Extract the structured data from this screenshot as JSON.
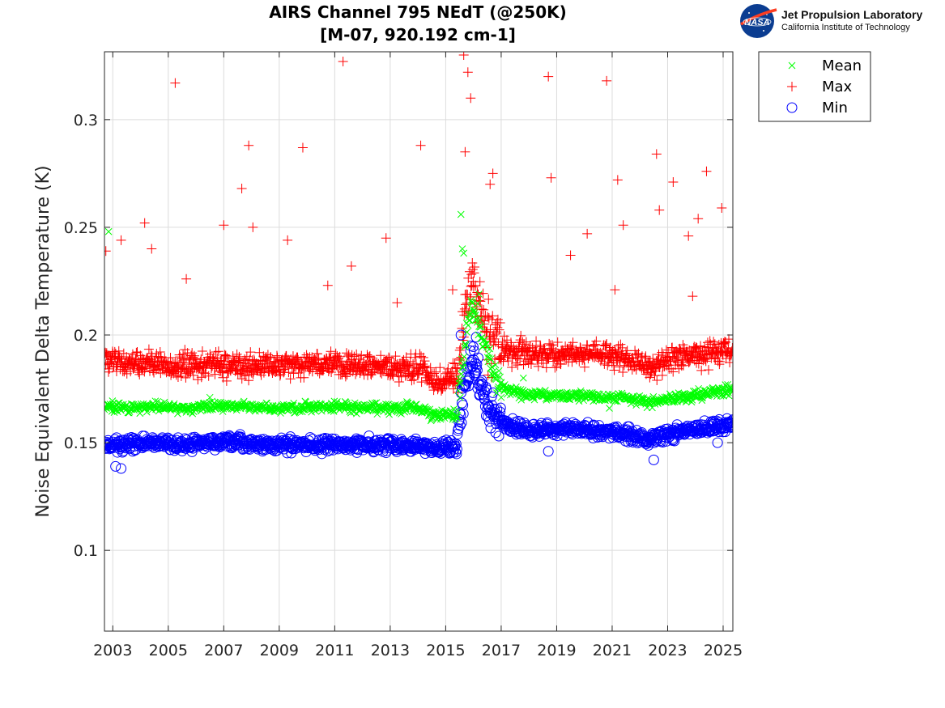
{
  "chart_data": {
    "type": "scatter",
    "title": [
      "AIRS Channel 795 NEdT (@250K)",
      "[M-07, 920.192 cm-1]"
    ],
    "xlabel": "",
    "ylabel": "Noise Equivalent Delta Temperature (K)",
    "xlim": [
      2002.7,
      2025.35
    ],
    "ylim": [
      0.0625,
      0.3315
    ],
    "xticks": [
      2003,
      2005,
      2007,
      2009,
      2011,
      2013,
      2015,
      2017,
      2019,
      2021,
      2023,
      2025
    ],
    "yticks": [
      0.1,
      0.15,
      0.2,
      0.25,
      0.3
    ],
    "ytick_labels": [
      "0.1",
      "0.15",
      "0.2",
      "0.25",
      "0.3"
    ],
    "grid": true,
    "legend_position": "outside-top-right",
    "series": [
      {
        "name": "Mean",
        "marker": "x",
        "color": "#00ff00",
        "x": [
          2002.7,
          2003.5,
          2004.5,
          2005.5,
          2006.5,
          2007.5,
          2008.5,
          2009.5,
          2010.5,
          2011.5,
          2012.5,
          2013.5,
          2014.2,
          2014.5,
          2015.0,
          2015.4,
          2015.6,
          2015.8,
          2016.0,
          2016.2,
          2016.4,
          2016.6,
          2016.8,
          2017.0,
          2017.5,
          2018.0,
          2018.5,
          2019.0,
          2019.5,
          2020.0,
          2020.5,
          2021.0,
          2021.5,
          2022.0,
          2022.3,
          2022.6,
          2023.0,
          2023.5,
          2024.0,
          2024.5,
          2025.0,
          2025.35
        ],
        "y": [
          0.167,
          0.166,
          0.167,
          0.166,
          0.167,
          0.167,
          0.166,
          0.166,
          0.167,
          0.166,
          0.166,
          0.166,
          0.166,
          0.162,
          0.163,
          0.163,
          0.185,
          0.205,
          0.215,
          0.205,
          0.195,
          0.188,
          0.18,
          0.176,
          0.174,
          0.172,
          0.172,
          0.172,
          0.172,
          0.172,
          0.171,
          0.171,
          0.171,
          0.17,
          0.168,
          0.169,
          0.17,
          0.171,
          0.172,
          0.173,
          0.174,
          0.175
        ],
        "outliers": [
          [
            2002.85,
            0.248
          ],
          [
            2006.5,
            0.171
          ],
          [
            2013.6,
            0.169
          ],
          [
            2015.55,
            0.256
          ],
          [
            2015.6,
            0.24
          ],
          [
            2015.65,
            0.238
          ],
          [
            2016.2,
            0.219
          ],
          [
            2017.0,
            0.171
          ],
          [
            2020.9,
            0.166
          ],
          [
            2017.8,
            0.18
          ]
        ]
      },
      {
        "name": "Max",
        "marker": "+",
        "color": "#ff0000",
        "x": [
          2002.7,
          2003.5,
          2004.5,
          2005.5,
          2006.5,
          2007.5,
          2008.5,
          2009.5,
          2010.5,
          2011.5,
          2012.5,
          2013.5,
          2014.2,
          2014.5,
          2015.0,
          2015.4,
          2015.6,
          2015.8,
          2016.0,
          2016.2,
          2016.4,
          2016.6,
          2016.8,
          2017.0,
          2017.5,
          2018.0,
          2018.5,
          2019.0,
          2019.5,
          2020.0,
          2020.5,
          2021.0,
          2021.5,
          2022.0,
          2022.3,
          2022.6,
          2023.0,
          2023.5,
          2024.0,
          2024.5,
          2025.0,
          2025.35
        ],
        "y": [
          0.187,
          0.186,
          0.186,
          0.185,
          0.185,
          0.185,
          0.185,
          0.185,
          0.185,
          0.185,
          0.184,
          0.184,
          0.184,
          0.178,
          0.178,
          0.18,
          0.2,
          0.215,
          0.225,
          0.212,
          0.205,
          0.2,
          0.196,
          0.193,
          0.191,
          0.19,
          0.19,
          0.19,
          0.191,
          0.191,
          0.19,
          0.19,
          0.188,
          0.186,
          0.184,
          0.185,
          0.187,
          0.189,
          0.19,
          0.191,
          0.192,
          0.193
        ],
        "outliers": [
          [
            2002.75,
            0.239
          ],
          [
            2005.25,
            0.317
          ],
          [
            2007.65,
            0.268
          ],
          [
            2007.9,
            0.288
          ],
          [
            2009.85,
            0.287
          ],
          [
            2011.3,
            0.327
          ],
          [
            2014.1,
            0.288
          ],
          [
            2015.65,
            0.33
          ],
          [
            2015.8,
            0.322
          ],
          [
            2015.9,
            0.31
          ],
          [
            2015.7,
            0.285
          ],
          [
            2016.6,
            0.27
          ],
          [
            2018.7,
            0.32
          ],
          [
            2018.8,
            0.273
          ],
          [
            2020.8,
            0.318
          ],
          [
            2021.2,
            0.272
          ],
          [
            2022.6,
            0.284
          ],
          [
            2023.2,
            0.271
          ],
          [
            2024.4,
            0.276
          ],
          [
            2024.95,
            0.259
          ],
          [
            2004.15,
            0.252
          ],
          [
            2007.0,
            0.251
          ],
          [
            2008.05,
            0.25
          ],
          [
            2012.85,
            0.245
          ],
          [
            2020.1,
            0.247
          ],
          [
            2023.75,
            0.246
          ],
          [
            2021.4,
            0.251
          ],
          [
            2003.3,
            0.244
          ],
          [
            2009.3,
            0.244
          ],
          [
            2004.4,
            0.24
          ],
          [
            2005.65,
            0.226
          ],
          [
            2010.75,
            0.223
          ],
          [
            2011.6,
            0.232
          ],
          [
            2013.25,
            0.215
          ],
          [
            2015.25,
            0.221
          ],
          [
            2019.5,
            0.237
          ],
          [
            2021.1,
            0.221
          ],
          [
            2022.7,
            0.258
          ],
          [
            2023.9,
            0.218
          ],
          [
            2024.1,
            0.254
          ],
          [
            2016.7,
            0.275
          ]
        ]
      },
      {
        "name": "Min",
        "marker": "o",
        "color": "#0000ff",
        "x": [
          2002.7,
          2003.5,
          2004.5,
          2005.5,
          2006.5,
          2007.5,
          2008.5,
          2009.5,
          2010.5,
          2011.5,
          2012.5,
          2013.5,
          2014.2,
          2014.5,
          2015.0,
          2015.4,
          2015.6,
          2015.8,
          2016.0,
          2016.2,
          2016.4,
          2016.6,
          2016.8,
          2017.0,
          2017.5,
          2018.0,
          2018.5,
          2019.0,
          2019.5,
          2020.0,
          2020.5,
          2021.0,
          2021.5,
          2022.0,
          2022.3,
          2022.6,
          2023.0,
          2023.5,
          2024.0,
          2024.5,
          2025.0,
          2025.35
        ],
        "y": [
          0.149,
          0.149,
          0.15,
          0.149,
          0.15,
          0.15,
          0.149,
          0.149,
          0.149,
          0.149,
          0.149,
          0.149,
          0.148,
          0.148,
          0.148,
          0.148,
          0.17,
          0.18,
          0.19,
          0.178,
          0.17,
          0.166,
          0.162,
          0.16,
          0.157,
          0.156,
          0.156,
          0.156,
          0.156,
          0.156,
          0.155,
          0.155,
          0.154,
          0.153,
          0.151,
          0.152,
          0.154,
          0.155,
          0.156,
          0.157,
          0.158,
          0.159
        ],
        "outliers": [
          [
            2003.1,
            0.139
          ],
          [
            2003.3,
            0.138
          ],
          [
            2015.55,
            0.2
          ],
          [
            2015.9,
            0.195
          ],
          [
            2016.1,
            0.199
          ],
          [
            2018.7,
            0.146
          ],
          [
            2022.5,
            0.142
          ],
          [
            2024.8,
            0.15
          ]
        ]
      }
    ]
  },
  "logo": {
    "title": "Jet Propulsion Laboratory",
    "subtitle": "California Institute of Technology",
    "meatball_text": "NASA"
  }
}
